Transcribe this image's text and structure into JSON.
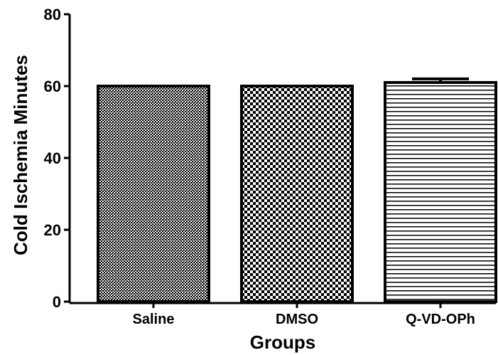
{
  "chart_data": {
    "type": "bar",
    "categories": [
      "Saline",
      "DMSO",
      "Q-VD-OPh"
    ],
    "values": [
      60,
      60,
      61
    ],
    "errors": [
      0,
      0,
      1
    ],
    "fill_patterns": [
      "fine-crosshatch",
      "checkerboard",
      "horizontal-lines"
    ],
    "ylabel": "Cold Ischemia Minutes",
    "xlabel": "Groups",
    "ylim": [
      0,
      80
    ],
    "yticks": [
      0,
      20,
      40,
      60,
      80
    ],
    "grid": false,
    "colors": {
      "bar_outline": "#000000",
      "bar_fill": "#000000",
      "background": "#ffffff"
    }
  }
}
